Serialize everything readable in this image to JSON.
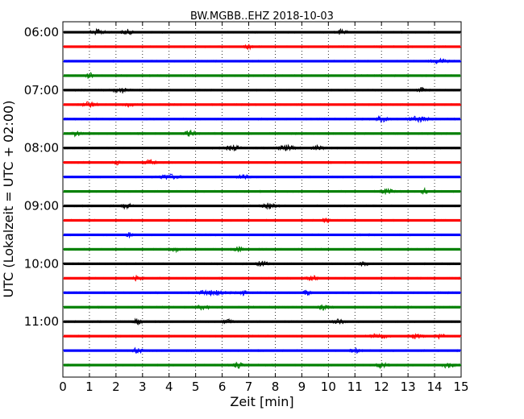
{
  "chart_data": {
    "type": "line",
    "title": "BW.MGBB..EHZ 2018-10-03",
    "xlabel": "Zeit  [min]",
    "ylabel": "UTC (Lokalzeit = UTC + 02:00)",
    "xlim": [
      0,
      15
    ],
    "x_ticks": [
      "0",
      "1",
      "2",
      "3",
      "4",
      "5",
      "6",
      "7",
      "8",
      "9",
      "10",
      "11",
      "12",
      "13",
      "14",
      "15"
    ],
    "y_ticks": [
      {
        "label": "06:00",
        "row": 0
      },
      {
        "label": "07:00",
        "row": 4
      },
      {
        "label": "08:00",
        "row": 8
      },
      {
        "label": "09:00",
        "row": 12
      },
      {
        "label": "10:00",
        "row": 16
      },
      {
        "label": "11:00",
        "row": 20
      }
    ],
    "grid": "vertical dotted",
    "color_cycle": [
      "#000000",
      "#ff0000",
      "#0000ff",
      "#008000"
    ],
    "rows": [
      {
        "start": "06:00",
        "bursts": [
          [
            1.3,
            0.6
          ],
          [
            2.4,
            0.5
          ],
          [
            10.5,
            0.4
          ]
        ]
      },
      {
        "start": "06:15",
        "bursts": [
          [
            7.0,
            0.3
          ]
        ]
      },
      {
        "start": "06:30",
        "bursts": [
          [
            14.2,
            0.6
          ]
        ]
      },
      {
        "start": "06:45",
        "bursts": [
          [
            1.0,
            0.3
          ]
        ]
      },
      {
        "start": "07:00",
        "bursts": [
          [
            2.2,
            0.7
          ],
          [
            13.5,
            0.3
          ]
        ]
      },
      {
        "start": "07:15",
        "bursts": [
          [
            1.0,
            0.6
          ],
          [
            2.5,
            0.4
          ]
        ]
      },
      {
        "start": "07:30",
        "bursts": [
          [
            12.0,
            0.5
          ],
          [
            13.4,
            0.9
          ]
        ]
      },
      {
        "start": "07:45",
        "bursts": [
          [
            0.5,
            0.4
          ],
          [
            4.8,
            0.5
          ]
        ]
      },
      {
        "start": "08:00",
        "bursts": [
          [
            6.4,
            0.6
          ],
          [
            8.4,
            0.7
          ],
          [
            9.6,
            0.5
          ]
        ]
      },
      {
        "start": "08:15",
        "bursts": [
          [
            2.0,
            0.4
          ],
          [
            3.3,
            0.5
          ]
        ]
      },
      {
        "start": "08:30",
        "bursts": [
          [
            4.0,
            0.8
          ],
          [
            6.8,
            0.5
          ]
        ]
      },
      {
        "start": "08:45",
        "bursts": [
          [
            12.2,
            0.5
          ],
          [
            13.6,
            0.3
          ]
        ]
      },
      {
        "start": "09:00",
        "bursts": [
          [
            2.4,
            0.4
          ],
          [
            7.8,
            0.6
          ]
        ]
      },
      {
        "start": "09:15",
        "bursts": [
          [
            9.9,
            0.3
          ]
        ]
      },
      {
        "start": "09:30",
        "bursts": [
          [
            2.5,
            0.3
          ]
        ]
      },
      {
        "start": "09:45",
        "bursts": [
          [
            4.2,
            0.4
          ],
          [
            6.6,
            0.4
          ]
        ]
      },
      {
        "start": "10:00",
        "bursts": [
          [
            7.5,
            0.5
          ],
          [
            11.3,
            0.4
          ]
        ]
      },
      {
        "start": "10:15",
        "bursts": [
          [
            2.8,
            0.4
          ],
          [
            9.4,
            0.5
          ]
        ]
      },
      {
        "start": "10:30",
        "bursts": [
          [
            5.6,
            1.2
          ],
          [
            6.7,
            0.5
          ],
          [
            9.2,
            0.3
          ]
        ]
      },
      {
        "start": "10:45",
        "bursts": [
          [
            5.3,
            0.5
          ],
          [
            9.8,
            0.4
          ]
        ]
      },
      {
        "start": "11:00",
        "bursts": [
          [
            2.8,
            0.4
          ],
          [
            6.2,
            0.4
          ],
          [
            10.4,
            0.5
          ]
        ]
      },
      {
        "start": "11:15",
        "bursts": [
          [
            11.9,
            0.7
          ],
          [
            13.3,
            0.6
          ],
          [
            14.2,
            0.4
          ]
        ]
      },
      {
        "start": "11:30",
        "bursts": [
          [
            2.8,
            0.5
          ],
          [
            11.0,
            0.4
          ]
        ]
      },
      {
        "start": "11:45",
        "bursts": [
          [
            6.6,
            0.4
          ],
          [
            12.0,
            0.5
          ],
          [
            14.5,
            0.5
          ]
        ]
      }
    ]
  }
}
